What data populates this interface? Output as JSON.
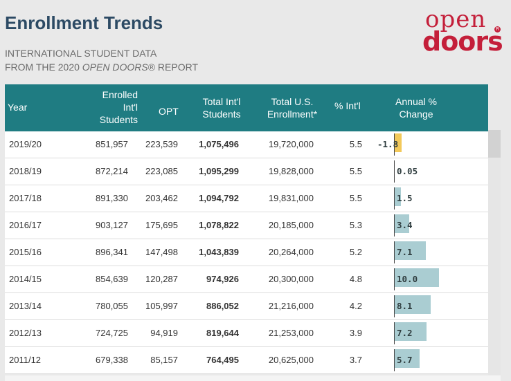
{
  "header": {
    "title": "Enrollment Trends",
    "subtitle_line1": "INTERNATIONAL STUDENT DATA",
    "subtitle_line2_prefix": "FROM THE 2020 ",
    "subtitle_line2_brand": "OPEN DOORS",
    "subtitle_reg": "®",
    "subtitle_line2_suffix": " REPORT"
  },
  "logo": {
    "open": "open",
    "doors": "doors",
    "reg": "R"
  },
  "table": {
    "headers": {
      "year": "Year",
      "enrolled_1": "Enrolled",
      "enrolled_2": "Int'l",
      "enrolled_3": "Students",
      "opt": "OPT",
      "total_1": "Total Int'l",
      "total_2": "Students",
      "us_1": "Total U.S.",
      "us_2": "Enrollment*",
      "pct": "% Int'l",
      "annual_1": "Annual %",
      "annual_2": "Change"
    },
    "rows": [
      {
        "year": "2019/20",
        "enrolled": "851,957",
        "opt": "223,539",
        "total": "1,075,496",
        "us": "19,720,000",
        "pct": "5.5",
        "change": "-1.8",
        "change_value": -1.8
      },
      {
        "year": "2018/19",
        "enrolled": "872,214",
        "opt": "223,085",
        "total": "1,095,299",
        "us": "19,828,000",
        "pct": "5.5",
        "change": "0.05",
        "change_value": 0.05
      },
      {
        "year": "2017/18",
        "enrolled": "891,330",
        "opt": "203,462",
        "total": "1,094,792",
        "us": "19,831,000",
        "pct": "5.5",
        "change": "1.5",
        "change_value": 1.5
      },
      {
        "year": "2016/17",
        "enrolled": "903,127",
        "opt": "175,695",
        "total": "1,078,822",
        "us": "20,185,000",
        "pct": "5.3",
        "change": "3.4",
        "change_value": 3.4
      },
      {
        "year": "2015/16",
        "enrolled": "896,341",
        "opt": "147,498",
        "total": "1,043,839",
        "us": "20,264,000",
        "pct": "5.2",
        "change": "7.1",
        "change_value": 7.1
      },
      {
        "year": "2014/15",
        "enrolled": "854,639",
        "opt": "120,287",
        "total": "974,926",
        "us": "20,300,000",
        "pct": "4.8",
        "change": "10.0",
        "change_value": 10.0
      },
      {
        "year": "2013/14",
        "enrolled": "780,055",
        "opt": "105,997",
        "total": "886,052",
        "us": "21,216,000",
        "pct": "4.2",
        "change": "8.1",
        "change_value": 8.1
      },
      {
        "year": "2012/13",
        "enrolled": "724,725",
        "opt": "94,919",
        "total": "819,644",
        "us": "21,253,000",
        "pct": "3.9",
        "change": "7.2",
        "change_value": 7.2
      },
      {
        "year": "2011/12",
        "enrolled": "679,338",
        "opt": "85,157",
        "total": "764,495",
        "us": "20,625,000",
        "pct": "3.7",
        "change": "5.7",
        "change_value": 5.7
      }
    ]
  },
  "colors": {
    "header_bg": "#1f7c82",
    "title": "#2c4a64",
    "brand": "#c41f3a",
    "bar_positive": "#aacdd2",
    "bar_negative": "#f3c95a"
  }
}
